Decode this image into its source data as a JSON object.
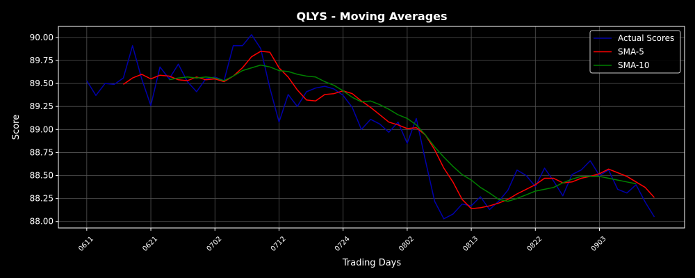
{
  "chart_data": {
    "type": "line",
    "title": "QLYS - Moving Averages",
    "xlabel": "Trading Days",
    "ylabel": "Score",
    "x_tick_labels": [
      "0611",
      "0621",
      "0702",
      "0712",
      "0724",
      "0802",
      "0813",
      "0822",
      "0903"
    ],
    "x_tick_positions": [
      0,
      7,
      14,
      21,
      28,
      35,
      42,
      49,
      56
    ],
    "yticks": [
      88.0,
      88.25,
      88.5,
      88.75,
      89.0,
      89.25,
      89.5,
      89.75,
      90.0
    ],
    "ytick_labels": [
      "88.00",
      "88.25",
      "88.50",
      "88.75",
      "89.00",
      "89.25",
      "89.50",
      "89.75",
      "90.00"
    ],
    "xlim": [
      -3.1,
      65.3
    ],
    "ylim": [
      87.93,
      90.12
    ],
    "grid": true,
    "legend_position": "top-right",
    "series": [
      {
        "name": "Actual Scores",
        "color": "#0000aa",
        "start_index": 0,
        "values": [
          89.53,
          89.37,
          89.5,
          89.49,
          89.56,
          89.91,
          89.55,
          89.26,
          89.68,
          89.55,
          89.71,
          89.52,
          89.41,
          89.55,
          89.57,
          89.53,
          89.91,
          89.91,
          90.03,
          89.88,
          89.45,
          89.08,
          89.38,
          89.25,
          89.41,
          89.45,
          89.47,
          89.44,
          89.37,
          89.24,
          89.0,
          89.11,
          89.06,
          88.97,
          89.08,
          88.85,
          89.12,
          88.66,
          88.22,
          88.03,
          88.08,
          88.19,
          88.17,
          88.27,
          88.13,
          88.22,
          88.34,
          88.56,
          88.5,
          88.38,
          88.58,
          88.44,
          88.28,
          88.51,
          88.56,
          88.66,
          88.5,
          88.56,
          88.35,
          88.31,
          88.4,
          88.21,
          88.05
        ]
      },
      {
        "name": "SMA-5",
        "color": "#ff0000",
        "start_index": 4,
        "values": [
          89.49,
          89.56,
          89.6,
          89.55,
          89.59,
          89.58,
          89.54,
          89.53,
          89.57,
          89.54,
          89.55,
          89.52,
          89.58,
          89.67,
          89.79,
          89.85,
          89.84,
          89.67,
          89.57,
          89.43,
          89.32,
          89.31,
          89.38,
          89.39,
          89.42,
          89.39,
          89.31,
          89.24,
          89.16,
          89.08,
          89.05,
          89.01,
          89.02,
          88.94,
          88.78,
          88.58,
          88.43,
          88.24,
          88.14,
          88.15,
          88.17,
          88.2,
          88.24,
          88.3,
          88.35,
          88.4,
          88.47,
          88.47,
          88.42,
          88.43,
          88.47,
          88.49,
          88.52,
          88.57,
          88.53,
          88.49,
          88.43,
          88.37,
          88.26
        ]
      },
      {
        "name": "SMA-10",
        "color": "#008000",
        "start_index": 9,
        "values": [
          89.54,
          89.56,
          89.57,
          89.56,
          89.57,
          89.56,
          89.53,
          89.58,
          89.64,
          89.67,
          89.7,
          89.68,
          89.64,
          89.63,
          89.6,
          89.58,
          89.57,
          89.52,
          89.48,
          89.42,
          89.35,
          89.3,
          89.31,
          89.27,
          89.22,
          89.16,
          89.12,
          89.05,
          88.94,
          88.81,
          88.7,
          88.6,
          88.51,
          88.45,
          88.37,
          88.31,
          88.24,
          88.22,
          88.25,
          88.29,
          88.33,
          88.35,
          88.37,
          88.42,
          88.46,
          88.49,
          88.49,
          88.49,
          88.47,
          88.45,
          88.43,
          88.41
        ]
      }
    ]
  }
}
